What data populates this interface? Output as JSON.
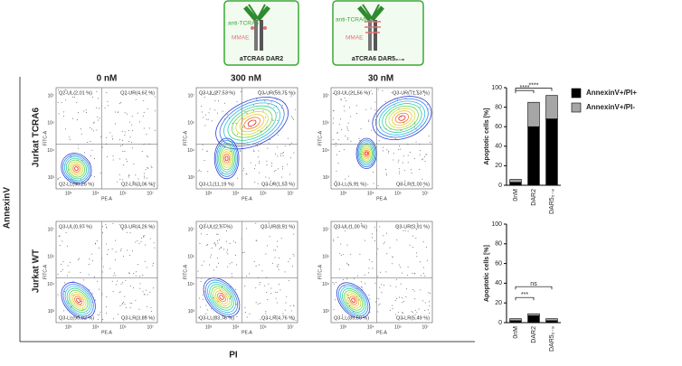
{
  "figure": {
    "y_axis_label": "AnnexinV",
    "x_axis_label": "PI",
    "rows": [
      "Jurkat TCRA6",
      "Jurkat WT"
    ],
    "columns": [
      "0 nM",
      "300 nM",
      "30 nM"
    ],
    "constructs": [
      {
        "antibody": "anti-TCRA6",
        "payload": "MMAE",
        "name": "aTCRA6 DAR2"
      },
      {
        "antibody": "anti-TCRA6",
        "payload": "MMAE",
        "name": "aTCRA6 DAR5₂₋₈"
      }
    ],
    "flow_axis": {
      "x_label": "PE-A",
      "y_label": "FITC-A",
      "x_ticks": [
        "10³",
        "10⁴",
        "10⁵",
        "10⁷"
      ],
      "y_ticks": [
        "10⁷",
        "10⁵",
        "10⁴",
        "10³"
      ]
    },
    "plots": [
      {
        "UL": "Q2-UL(2,01 %)",
        "UR": "Q2-UR(4,67 %)",
        "LL": "Q2-LL(90,26 %)",
        "LR": "Q2-LR(3,06 %)"
      },
      {
        "UL": "Q3-UL(27,53 %)",
        "UR": "Q3-UR(59,75 %)",
        "LL": "Q3-LL(11,19 %)",
        "LR": "Q3-LR(1,53 %)"
      },
      {
        "UL": "Q3-UL(21,56 %)",
        "UR": "Q3-UR(71,53 %)",
        "LL": "Q3-LL(5,91 %)",
        "LR": "Q3-LR(1,00 %)"
      },
      {
        "UL": "Q3-UL(0,97 %)",
        "UR": "Q3-UR(4,26 %)",
        "LL": "Q3-LL(90,92 %)",
        "LR": "Q3-LR(3,85 %)"
      },
      {
        "UL": "Q3-UL(2,97 %)",
        "UR": "Q3-UR(8,51 %)",
        "LL": "Q3-LL(83,76 %)",
        "LR": "Q3-LR(4,76 %)"
      },
      {
        "UL": "Q3-UL(1,00 %)",
        "UR": "Q3-UR(3,91 %)",
        "LL": "Q3-LL(89,60 %)",
        "LR": "Q3-LR(5,49 %)"
      }
    ]
  },
  "chart_data": [
    {
      "type": "stacked_bar",
      "y_label": "Apoptotic cells [%]",
      "categories": [
        "0nM",
        "DAR2",
        "DAR5₂₋₈"
      ],
      "series": [
        {
          "name": "AnnexinV+/PI+",
          "color": "#000000",
          "values": [
            3,
            60,
            68
          ]
        },
        {
          "name": "AnnexinV+/PI-",
          "color": "#a6a6a6",
          "values": [
            3,
            25,
            24
          ]
        }
      ],
      "annotations": [
        "****",
        "****"
      ],
      "ylim": [
        0,
        100
      ],
      "yticks": [
        0,
        20,
        40,
        60,
        80,
        100
      ],
      "legend": "right"
    },
    {
      "type": "stacked_bar",
      "y_label": "Apoptotic cells [%]",
      "categories": [
        "0nM",
        "DAR2",
        "DAR5₂₋₈"
      ],
      "series": [
        {
          "name": "AnnexinV+/PI+",
          "color": "#000000",
          "values": [
            2,
            7,
            2
          ]
        },
        {
          "name": "AnnexinV+/PI-",
          "color": "#a6a6a6",
          "values": [
            2,
            2,
            2
          ]
        }
      ],
      "annotations": [
        "***",
        "ns"
      ],
      "ylim": [
        0,
        100
      ],
      "yticks": [
        0,
        20,
        40,
        60,
        80,
        100
      ]
    }
  ]
}
